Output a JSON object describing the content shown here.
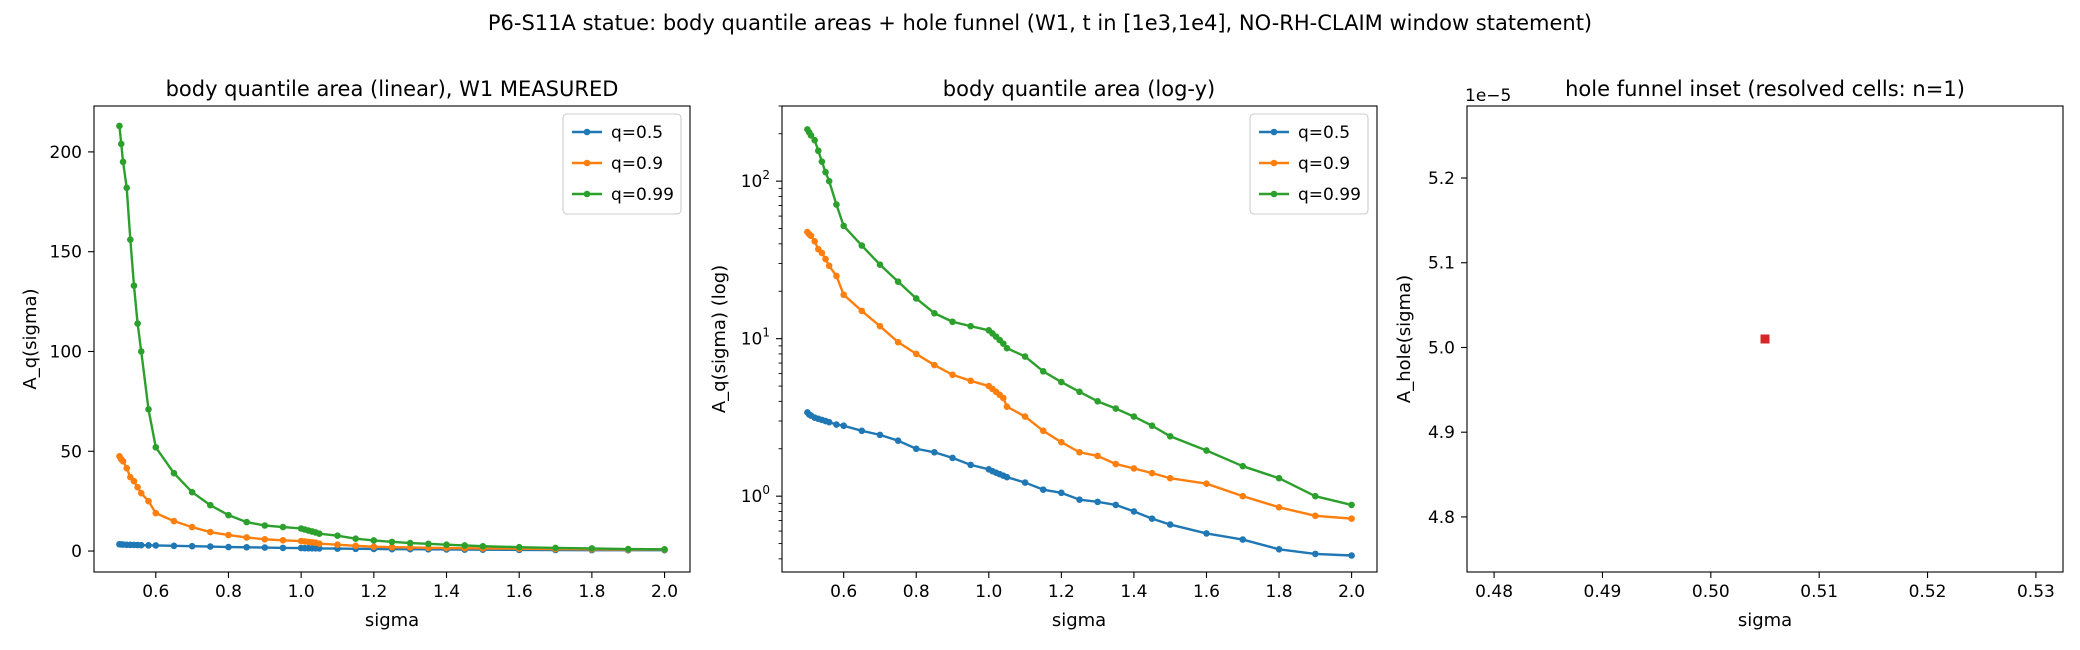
{
  "suptitle": "P6-S11A statue: body quantile areas + hole funnel (W1, t in [1e3,1e4], NO-RH-CLAIM window statement)",
  "colors": {
    "q05": "#1f77b4",
    "q09": "#ff7f0e",
    "q099": "#2ca02c",
    "hole": "#d62728"
  },
  "chart_data": [
    {
      "type": "line",
      "title": "body quantile area (linear), W1 MEASURED",
      "xlabel": "sigma",
      "ylabel": "A_q(sigma)",
      "yscale": "linear",
      "xlim": [
        0.43,
        2.07
      ],
      "ylim": [
        -10.5,
        223
      ],
      "xticks": [
        "0.6",
        "0.8",
        "1.0",
        "1.2",
        "1.4",
        "1.6",
        "1.8",
        "2.0"
      ],
      "yticks": [
        "0",
        "50",
        "100",
        "150",
        "200"
      ],
      "legend": {
        "placement": "top-right"
      },
      "x": [
        0.5,
        0.505,
        0.51,
        0.52,
        0.53,
        0.54,
        0.55,
        0.56,
        0.58,
        0.6,
        0.65,
        0.7,
        0.75,
        0.8,
        0.85,
        0.9,
        0.95,
        1.0,
        1.01,
        1.02,
        1.03,
        1.04,
        1.05,
        1.1,
        1.15,
        1.2,
        1.25,
        1.3,
        1.35,
        1.4,
        1.45,
        1.5,
        1.6,
        1.7,
        1.8,
        1.9,
        2.0
      ],
      "series": [
        {
          "name": "q=0.5",
          "values": [
            3.4,
            3.3,
            3.25,
            3.15,
            3.1,
            3.05,
            3.0,
            2.95,
            2.85,
            2.8,
            2.6,
            2.45,
            2.25,
            2.0,
            1.9,
            1.75,
            1.58,
            1.48,
            1.44,
            1.41,
            1.38,
            1.35,
            1.32,
            1.22,
            1.1,
            1.05,
            0.95,
            0.92,
            0.88,
            0.8,
            0.72,
            0.66,
            0.58,
            0.53,
            0.46,
            0.43,
            0.42
          ]
        },
        {
          "name": "q=0.9",
          "values": [
            47.5,
            46,
            45,
            41.5,
            37,
            35,
            32,
            29,
            25,
            19,
            15,
            12,
            9.5,
            8.0,
            6.8,
            5.9,
            5.4,
            5.0,
            4.8,
            4.6,
            4.4,
            4.2,
            3.7,
            3.2,
            2.6,
            2.2,
            1.9,
            1.8,
            1.6,
            1.5,
            1.4,
            1.3,
            1.2,
            1.0,
            0.85,
            0.75,
            0.72
          ]
        },
        {
          "name": "q=0.99",
          "values": [
            213,
            204,
            195,
            182,
            156,
            133,
            114,
            100,
            71,
            52,
            39,
            29.5,
            23,
            18,
            14.5,
            12.8,
            12,
            11.3,
            10.8,
            10.3,
            9.8,
            9.3,
            8.7,
            7.7,
            6.2,
            5.3,
            4.6,
            4.0,
            3.6,
            3.2,
            2.8,
            2.4,
            1.95,
            1.55,
            1.3,
            1.0,
            0.88
          ]
        }
      ]
    },
    {
      "type": "line",
      "title": "body quantile area (log-y)",
      "xlabel": "sigma",
      "ylabel": "A_q(sigma) (log)",
      "yscale": "log",
      "xlim": [
        0.43,
        2.07
      ],
      "ylim": [
        0.33,
        300
      ],
      "xticks": [
        "0.6",
        "0.8",
        "1.0",
        "1.2",
        "1.4",
        "1.6",
        "1.8",
        "2.0"
      ],
      "yticks": [
        1,
        10,
        100
      ],
      "legend": {
        "placement": "top-right"
      },
      "x": [
        0.5,
        0.505,
        0.51,
        0.52,
        0.53,
        0.54,
        0.55,
        0.56,
        0.58,
        0.6,
        0.65,
        0.7,
        0.75,
        0.8,
        0.85,
        0.9,
        0.95,
        1.0,
        1.01,
        1.02,
        1.03,
        1.04,
        1.05,
        1.1,
        1.15,
        1.2,
        1.25,
        1.3,
        1.35,
        1.4,
        1.45,
        1.5,
        1.6,
        1.7,
        1.8,
        1.9,
        2.0
      ],
      "series": [
        {
          "name": "q=0.5",
          "values": [
            3.4,
            3.3,
            3.25,
            3.15,
            3.1,
            3.05,
            3.0,
            2.95,
            2.85,
            2.8,
            2.6,
            2.45,
            2.25,
            2.0,
            1.9,
            1.75,
            1.58,
            1.48,
            1.44,
            1.41,
            1.38,
            1.35,
            1.32,
            1.22,
            1.1,
            1.05,
            0.95,
            0.92,
            0.88,
            0.8,
            0.72,
            0.66,
            0.58,
            0.53,
            0.46,
            0.43,
            0.42
          ]
        },
        {
          "name": "q=0.9",
          "values": [
            47.5,
            46,
            45,
            41.5,
            37,
            35,
            32,
            29,
            25,
            19,
            15,
            12,
            9.5,
            8.0,
            6.8,
            5.9,
            5.4,
            5.0,
            4.8,
            4.6,
            4.4,
            4.2,
            3.7,
            3.2,
            2.6,
            2.2,
            1.9,
            1.8,
            1.6,
            1.5,
            1.4,
            1.3,
            1.2,
            1.0,
            0.85,
            0.75,
            0.72
          ]
        },
        {
          "name": "q=0.99",
          "values": [
            213,
            204,
            195,
            182,
            156,
            133,
            114,
            100,
            71,
            52,
            39,
            29.5,
            23,
            18,
            14.5,
            12.8,
            12,
            11.3,
            10.8,
            10.3,
            9.8,
            9.3,
            8.7,
            7.7,
            6.2,
            5.3,
            4.6,
            4.0,
            3.6,
            3.2,
            2.8,
            2.4,
            1.95,
            1.55,
            1.3,
            1.0,
            0.88
          ]
        }
      ]
    },
    {
      "type": "scatter",
      "title": "hole funnel inset (resolved cells: n=1)",
      "xlabel": "sigma",
      "ylabel": "A_hole(sigma)",
      "offset_label": "1e−5",
      "xlim": [
        0.4775,
        0.5325
      ],
      "ylim": [
        4.735,
        5.285
      ],
      "xticks": [
        "0.48",
        "0.49",
        "0.50",
        "0.51",
        "0.52",
        "0.53"
      ],
      "yticks": [
        "4.8",
        "4.9",
        "5.0",
        "5.1",
        "5.2"
      ],
      "points": [
        {
          "x": 0.505,
          "y": 5.01
        }
      ]
    }
  ]
}
